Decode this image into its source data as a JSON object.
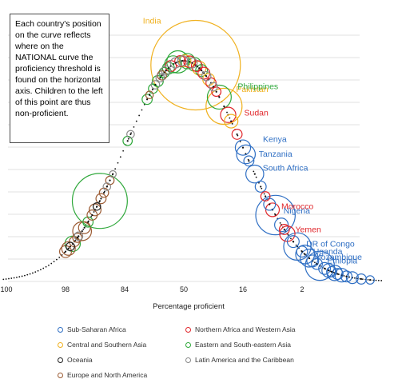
{
  "note": "Each country's position on the curve reflects where on the NATIONAL curve the proficiency threshold is found on the horizontal axis. Children to the left of this point are thus non-proficient.",
  "chart_data": {
    "type": "scatter",
    "xlabel": "Percentage proficient",
    "xticks": [
      "100",
      "98",
      "84",
      "50",
      "16",
      "2"
    ],
    "grid": true,
    "legend_position": "bottom",
    "region_colors": {
      "Sub-Saharan Africa": "#2f6fc4",
      "Northern Africa and Western Asia": "#e0262b",
      "Central and Southern Asia": "#f0b11f",
      "Eastern and South-eastern Asia": "#2fa83b",
      "Oceania": "#222222",
      "Latin America and the Caribbean": "#8a8a8a",
      "Europe and North America": "#9b5a32"
    },
    "legend": [
      {
        "label": "Sub-Saharan Africa",
        "color": "#2f6fc4"
      },
      {
        "label": "Northern Africa and Western Asia",
        "color": "#e0262b"
      },
      {
        "label": "Central and Southern Asia",
        "color": "#f0b11f"
      },
      {
        "label": "Eastern and South-eastern Asia",
        "color": "#2fa83b"
      },
      {
        "label": "Oceania",
        "color": "#222222"
      },
      {
        "label": "Latin America and the Caribbean",
        "color": "#8a8a8a"
      },
      {
        "label": "Europe and North America",
        "color": "#9b5a32"
      }
    ],
    "labeled_countries": [
      {
        "name": "India",
        "region": "Central and Southern Asia",
        "x": 0.2,
        "size": 1.0
      },
      {
        "name": "Pakistan",
        "region": "Central and Southern Asia",
        "x": 0.68,
        "size": 0.38
      },
      {
        "name": "Philippines",
        "region": "Eastern and South-eastern Asia",
        "x": 0.6,
        "size": 0.24
      },
      {
        "name": "Kenya",
        "region": "Sub-Saharan Africa",
        "x": 1.0,
        "size": 0.14
      },
      {
        "name": "Tanzania",
        "region": "Sub-Saharan Africa",
        "x": 1.05,
        "size": 0.18
      },
      {
        "name": "Sudan",
        "region": "Northern Africa and Western Asia",
        "x": 0.75,
        "size": 0.14
      },
      {
        "name": "South Africa",
        "region": "Sub-Saharan Africa",
        "x": 1.2,
        "size": 0.17
      },
      {
        "name": "Morocco",
        "region": "Northern Africa and Western Asia",
        "x": 1.5,
        "size": 0.12
      },
      {
        "name": "Nigeria",
        "region": "Sub-Saharan Africa",
        "x": 1.55,
        "size": 0.42
      },
      {
        "name": "Yemen",
        "region": "Northern Africa and Western Asia",
        "x": 1.75,
        "size": 0.14
      },
      {
        "name": "DR of Congo",
        "region": "Sub-Saharan Africa",
        "x": 1.92,
        "size": 0.28
      },
      {
        "name": "Uganda",
        "region": "Sub-Saharan Africa",
        "x": 2.05,
        "size": 0.18
      },
      {
        "name": "Mozambique",
        "region": "Sub-Saharan Africa",
        "x": 2.12,
        "size": 0.17
      },
      {
        "name": "Ethiopia",
        "region": "Sub-Saharan Africa",
        "x": 2.3,
        "size": 0.3
      }
    ],
    "other_countries": [
      {
        "region": "Europe and North America",
        "x": -2.0,
        "size": 0.1
      },
      {
        "region": "Europe and North America",
        "x": -1.95,
        "size": 0.12
      },
      {
        "region": "Oceania",
        "x": -1.92,
        "size": 0.06
      },
      {
        "region": "Eastern and South-eastern Asia",
        "x": -1.88,
        "size": 0.14
      },
      {
        "region": "Europe and North America",
        "x": -1.85,
        "size": 0.08
      },
      {
        "region": "Europe and North America",
        "x": -1.8,
        "size": 0.07
      },
      {
        "region": "Latin America and the Caribbean",
        "x": -1.78,
        "size": 0.06
      },
      {
        "region": "Europe and North America",
        "x": -1.72,
        "size": 0.18
      },
      {
        "region": "Europe and North America",
        "x": -1.68,
        "size": 0.1
      },
      {
        "region": "Eastern and South-eastern Asia",
        "x": -1.62,
        "size": 0.08
      },
      {
        "region": "Europe and North America",
        "x": -1.55,
        "size": 0.08
      },
      {
        "region": "Europe and North America",
        "x": -1.5,
        "size": 0.1
      },
      {
        "region": "Oceania",
        "x": -1.47,
        "size": 0.05
      },
      {
        "region": "Eastern and South-eastern Asia",
        "x": -1.42,
        "size": 0.6
      },
      {
        "region": "Europe and North America",
        "x": -1.4,
        "size": 0.08
      },
      {
        "region": "Europe and North America",
        "x": -1.35,
        "size": 0.07
      },
      {
        "region": "Latin America and the Caribbean",
        "x": -1.3,
        "size": 0.05
      },
      {
        "region": "Europe and North America",
        "x": -1.25,
        "size": 0.06
      },
      {
        "region": "Latin America and the Caribbean",
        "x": -1.2,
        "size": 0.04
      },
      {
        "region": "Eastern and South-eastern Asia",
        "x": -0.95,
        "size": 0.07
      },
      {
        "region": "Latin America and the Caribbean",
        "x": -0.9,
        "size": 0.05
      },
      {
        "region": "Eastern and South-eastern Asia",
        "x": -0.62,
        "size": 0.08
      },
      {
        "region": "Europe and North America",
        "x": -0.58,
        "size": 0.05
      },
      {
        "region": "Eastern and South-eastern Asia",
        "x": -0.52,
        "size": 0.07
      },
      {
        "region": "Latin America and the Caribbean",
        "x": -0.48,
        "size": 0.06
      },
      {
        "region": "Eastern and South-eastern Asia",
        "x": -0.44,
        "size": 0.09
      },
      {
        "region": "Latin America and the Caribbean",
        "x": -0.4,
        "size": 0.06
      },
      {
        "region": "Europe and North America",
        "x": -0.37,
        "size": 0.07
      },
      {
        "region": "Eastern and South-eastern Asia",
        "x": -0.33,
        "size": 0.08
      },
      {
        "region": "Latin America and the Caribbean",
        "x": -0.3,
        "size": 0.07
      },
      {
        "region": "Eastern and South-eastern Asia",
        "x": -0.26,
        "size": 0.1
      },
      {
        "region": "Northern Africa and Western Asia",
        "x": -0.22,
        "size": 0.09
      },
      {
        "region": "Eastern and South-eastern Asia",
        "x": -0.18,
        "size": 0.16
      },
      {
        "region": "Latin America and the Caribbean",
        "x": -0.14,
        "size": 0.08
      },
      {
        "region": "Eastern and South-eastern Asia",
        "x": -0.1,
        "size": 0.22
      },
      {
        "region": "Northern Africa and Western Asia",
        "x": -0.06,
        "size": 0.09
      },
      {
        "region": "Latin America and the Caribbean",
        "x": -0.02,
        "size": 0.08
      },
      {
        "region": "Central and Southern Asia",
        "x": 0.02,
        "size": 0.1
      },
      {
        "region": "Eastern and South-eastern Asia",
        "x": 0.06,
        "size": 0.14
      },
      {
        "region": "Northern Africa and Western Asia",
        "x": 0.1,
        "size": 0.1
      },
      {
        "region": "Latin America and the Caribbean",
        "x": 0.14,
        "size": 0.08
      },
      {
        "region": "Eastern and South-eastern Asia",
        "x": 0.18,
        "size": 0.12
      },
      {
        "region": "Northern Africa and Western Asia",
        "x": 0.22,
        "size": 0.09
      },
      {
        "region": "Central and Southern Asia",
        "x": 0.26,
        "size": 0.12
      },
      {
        "region": "Eastern and South-eastern Asia",
        "x": 0.3,
        "size": 0.1
      },
      {
        "region": "Northern Africa and Western Asia",
        "x": 0.34,
        "size": 0.1
      },
      {
        "region": "Latin America and the Caribbean",
        "x": 0.38,
        "size": 0.07
      },
      {
        "region": "Central and Southern Asia",
        "x": 0.42,
        "size": 0.1
      },
      {
        "region": "Northern Africa and Western Asia",
        "x": 0.46,
        "size": 0.08
      },
      {
        "region": "Latin America and the Caribbean",
        "x": 0.5,
        "size": 0.06
      },
      {
        "region": "Northern Africa and Western Asia",
        "x": 0.55,
        "size": 0.07
      },
      {
        "region": "Central and Southern Asia",
        "x": 0.8,
        "size": 0.12
      },
      {
        "region": "Northern Africa and Western Asia",
        "x": 0.9,
        "size": 0.08
      },
      {
        "region": "Sub-Saharan Africa",
        "x": 1.1,
        "size": 0.08
      },
      {
        "region": "Sub-Saharan Africa",
        "x": 1.3,
        "size": 0.09
      },
      {
        "region": "Northern Africa and Western Asia",
        "x": 1.38,
        "size": 0.07
      },
      {
        "region": "Sub-Saharan Africa",
        "x": 1.45,
        "size": 0.1
      },
      {
        "region": "Sub-Saharan Africa",
        "x": 1.65,
        "size": 0.12
      },
      {
        "region": "Northern Africa and Western Asia",
        "x": 1.7,
        "size": 0.08
      },
      {
        "region": "Sub-Saharan Africa",
        "x": 1.85,
        "size": 0.1
      },
      {
        "region": "Sub-Saharan Africa",
        "x": 2.0,
        "size": 0.09
      },
      {
        "region": "Sub-Saharan Africa",
        "x": 2.18,
        "size": 0.1
      },
      {
        "region": "Sub-Saharan Africa",
        "x": 2.25,
        "size": 0.09
      },
      {
        "region": "Sub-Saharan Africa",
        "x": 2.38,
        "size": 0.1
      },
      {
        "region": "Sub-Saharan Africa",
        "x": 2.45,
        "size": 0.12
      },
      {
        "region": "Sub-Saharan Africa",
        "x": 2.5,
        "size": 0.08
      },
      {
        "region": "Sub-Saharan Africa",
        "x": 2.55,
        "size": 0.14
      },
      {
        "region": "Sub-Saharan Africa",
        "x": 2.6,
        "size": 0.09
      },
      {
        "region": "Sub-Saharan Africa",
        "x": 2.67,
        "size": 0.12
      },
      {
        "region": "Sub-Saharan Africa",
        "x": 2.75,
        "size": 0.09
      },
      {
        "region": "Sub-Saharan Africa",
        "x": 2.85,
        "size": 0.1
      },
      {
        "region": "Sub-Saharan Africa",
        "x": 3.0,
        "size": 0.08
      },
      {
        "region": "Sub-Saharan Africa",
        "x": 3.15,
        "size": 0.06
      }
    ]
  }
}
